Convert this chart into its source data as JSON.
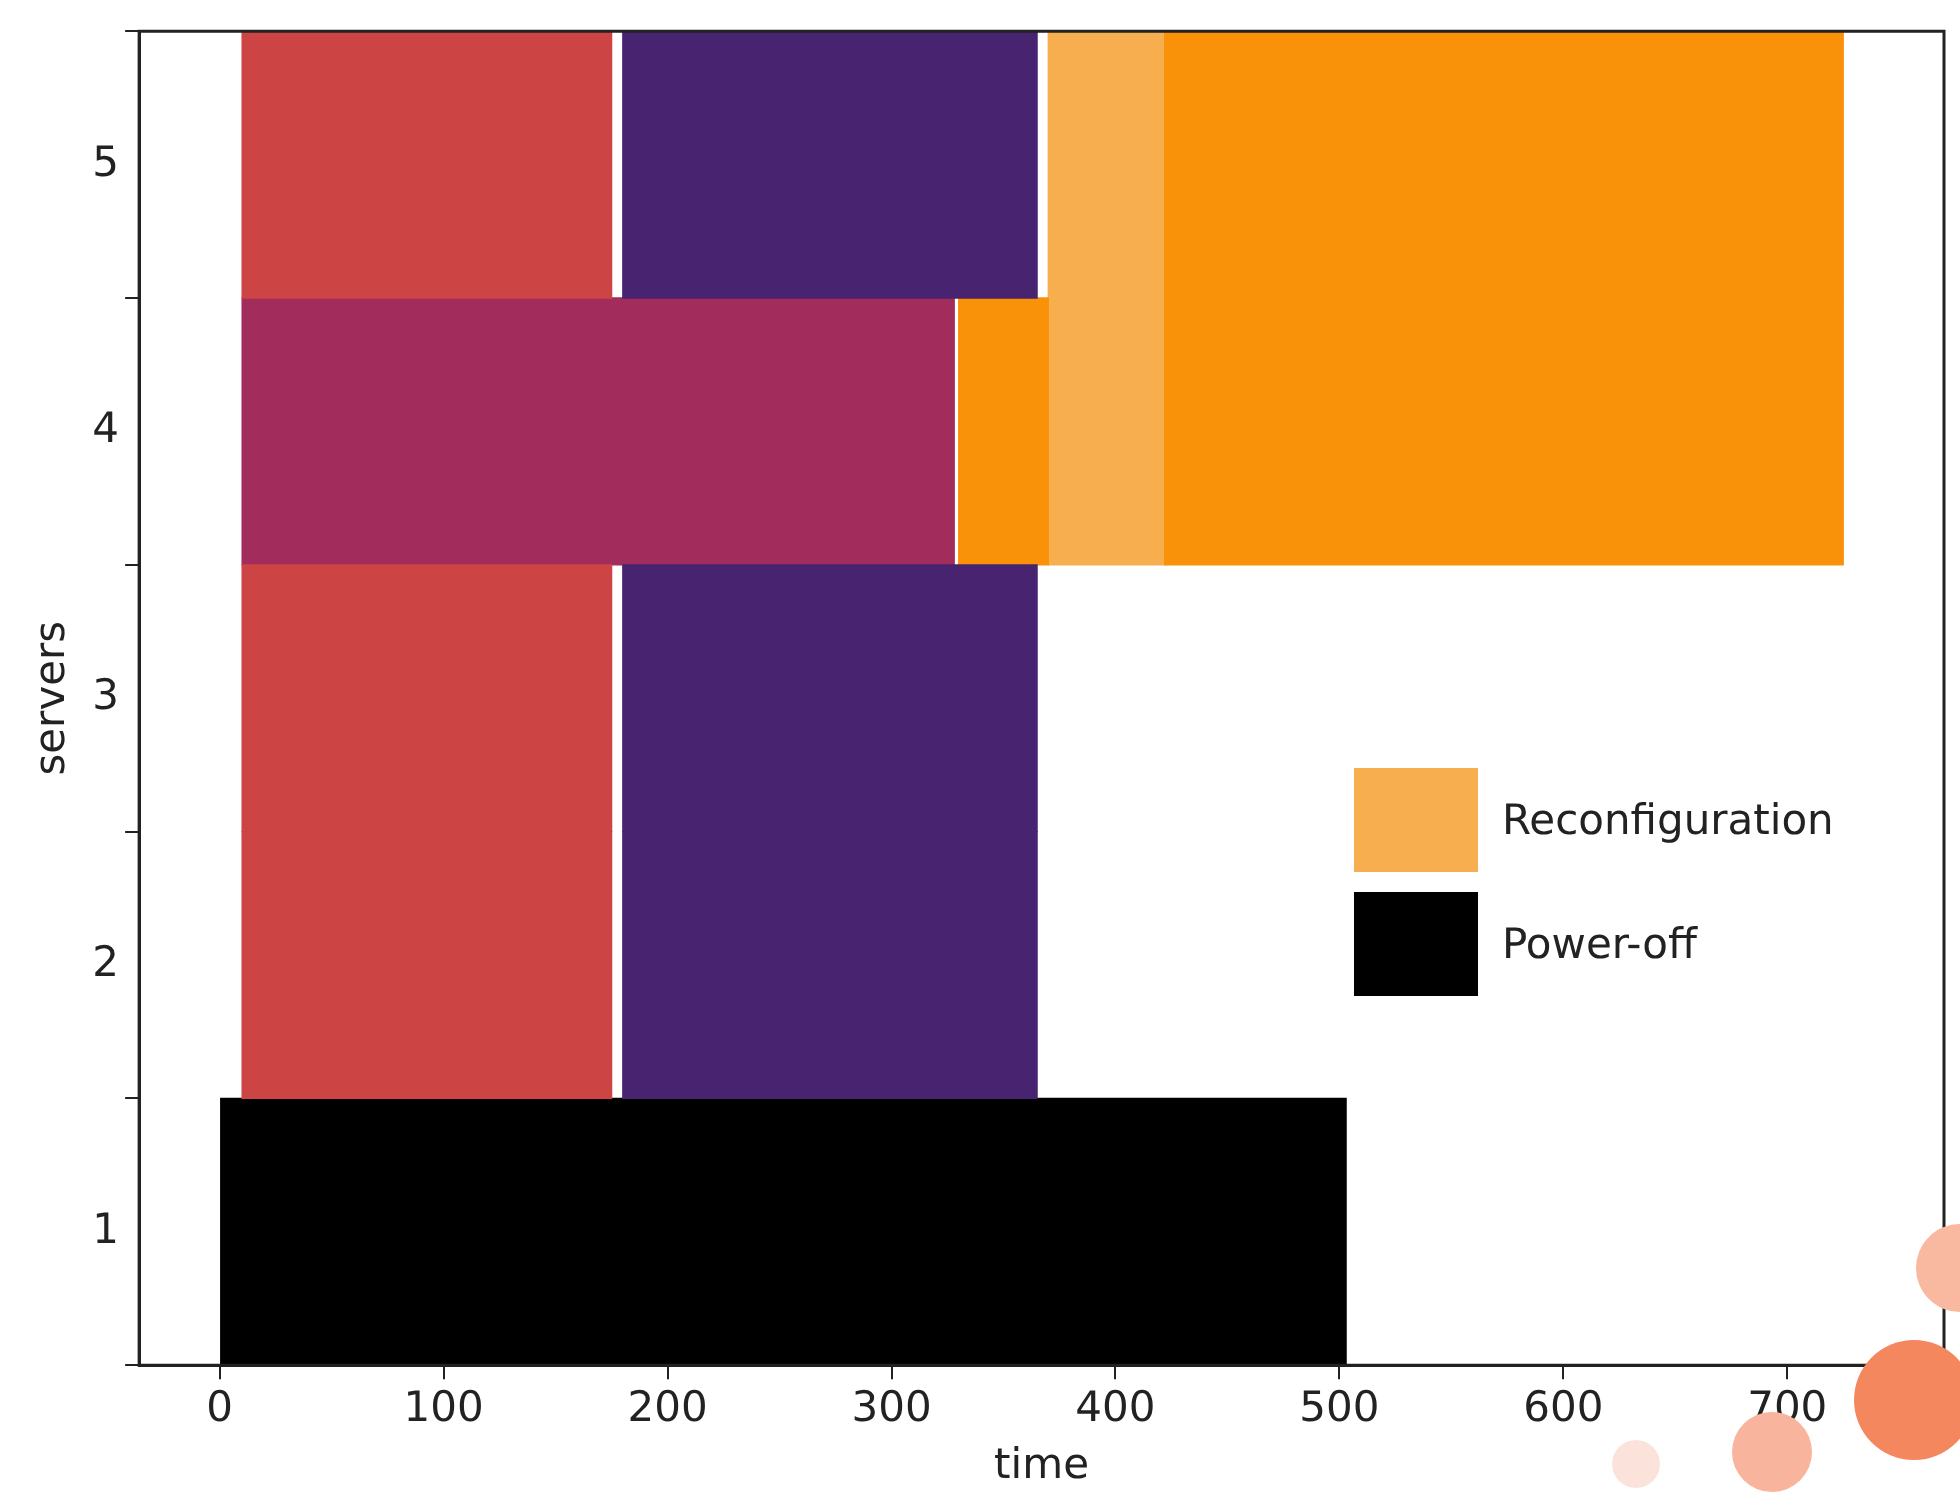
{
  "chart_data": {
    "type": "bar",
    "orientation": "horizontal",
    "xlabel": "time",
    "ylabel": "servers",
    "categories": [
      "5",
      "4",
      "3",
      "2",
      "1"
    ],
    "series": [
      {
        "color": "#cd4444",
        "base": [
          10,
          null,
          10,
          10,
          null
        ],
        "values": [
          165,
          null,
          165,
          165,
          null
        ]
      },
      {
        "color": "#472370",
        "base": [
          180,
          null,
          180,
          180,
          null
        ],
        "values": [
          185,
          null,
          185,
          185,
          null
        ]
      },
      {
        "color": "#a22c5c",
        "base": [
          null,
          10,
          null,
          null,
          null
        ],
        "values": [
          null,
          318,
          null,
          null,
          null
        ]
      },
      {
        "color": "#f99208",
        "base": [
          null,
          330,
          null,
          null,
          null
        ],
        "values": [
          null,
          40,
          null,
          null,
          null
        ]
      },
      {
        "color": "#f99208",
        "base": [
          422,
          422,
          null,
          null,
          null
        ],
        "values": [
          303,
          303,
          null,
          null,
          null
        ]
      },
      {
        "name": "Reconfiguration",
        "color": "#f7ae4f",
        "base": [
          370,
          370,
          null,
          null,
          null
        ],
        "values": [
          52,
          52,
          null,
          null,
          null
        ]
      },
      {
        "name": "Power-off",
        "color": "#000000",
        "base": [
          null,
          null,
          null,
          null,
          0
        ],
        "values": [
          null,
          null,
          null,
          null,
          503
        ]
      }
    ],
    "xlim": [
      -36,
      770
    ],
    "xticks": [
      0,
      100,
      200,
      300,
      400,
      500,
      600,
      700
    ],
    "legend": "right",
    "grid": false
  }
}
